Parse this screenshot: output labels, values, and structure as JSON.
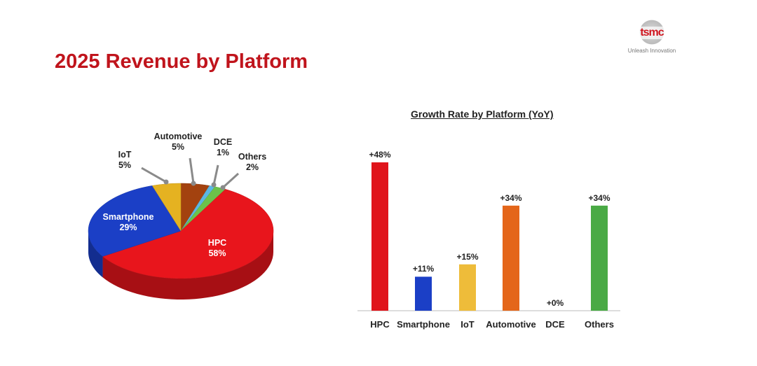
{
  "slide": {
    "title": "2025 Revenue by Platform",
    "logo": {
      "text": "tsmc",
      "tagline": "Unleash Innovation"
    }
  },
  "chart_data": [
    {
      "type": "pie",
      "style": "3d",
      "categories": [
        "Automotive",
        "DCE",
        "Others",
        "HPC",
        "Smartphone",
        "IoT"
      ],
      "values": [
        5,
        1,
        2,
        58,
        29,
        5
      ],
      "value_labels": [
        "5%",
        "1%",
        "2%",
        "58%",
        "29%",
        "5%"
      ],
      "colors": [
        "#a3420f",
        "#5bb7e3",
        "#6cc24a",
        "#e8151c",
        "#1b3fc6",
        "#e5b221"
      ]
    },
    {
      "type": "bar",
      "title": "Growth Rate by Platform (YoY)",
      "categories": [
        "HPC",
        "Smartphone",
        "IoT",
        "Automotive",
        "DCE",
        "Others"
      ],
      "values": [
        48,
        11,
        15,
        34,
        0,
        34
      ],
      "value_labels": [
        "+48%",
        "+11%",
        "+15%",
        "+34%",
        "+0%",
        "+34%"
      ],
      "colors": [
        "#e0141b",
        "#1b3fc6",
        "#eebc3a",
        "#e4661a",
        "#5bb7e3",
        "#4aaa45"
      ],
      "ylim": [
        0,
        48
      ],
      "grid": false
    }
  ]
}
